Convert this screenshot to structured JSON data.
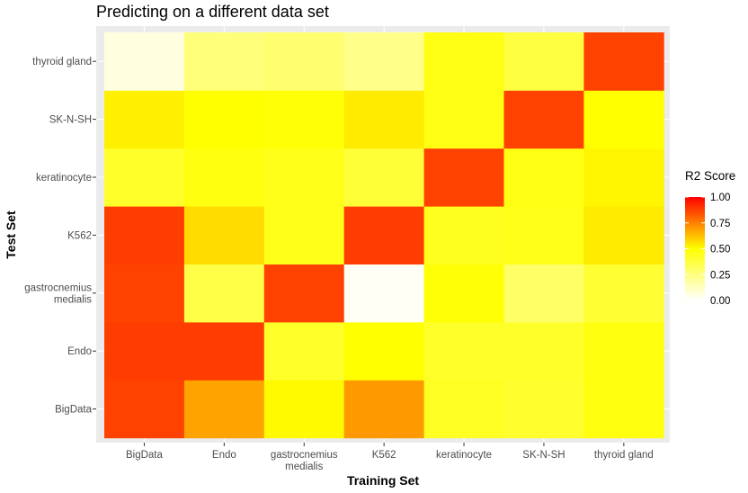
{
  "chart_data": {
    "type": "heatmap",
    "title": "Predicting on a different data set",
    "xlabel": "Training Set",
    "ylabel": "Test Set",
    "x_categories": [
      "BigData",
      "Endo",
      "gastrocnemius medialis",
      "K562",
      "keratinocyte",
      "SK-N-SH",
      "thyroid gland"
    ],
    "y_categories": [
      "BigData",
      "Endo",
      "gastrocnemius medialis",
      "K562",
      "keratinocyte",
      "SK-N-SH",
      "thyroid gland"
    ],
    "values": [
      [
        0.87,
        0.68,
        0.51,
        0.7,
        0.43,
        0.41,
        0.47
      ],
      [
        0.88,
        0.88,
        0.42,
        0.5,
        0.42,
        0.42,
        0.47
      ],
      [
        0.87,
        0.36,
        0.87,
        0.02,
        0.49,
        0.3,
        0.4
      ],
      [
        0.88,
        0.57,
        0.45,
        0.88,
        0.44,
        0.45,
        0.54
      ],
      [
        0.42,
        0.47,
        0.45,
        0.39,
        0.87,
        0.46,
        0.52
      ],
      [
        0.53,
        0.5,
        0.49,
        0.54,
        0.46,
        0.87,
        0.5
      ],
      [
        0.06,
        0.26,
        0.28,
        0.23,
        0.46,
        0.37,
        0.87
      ]
    ],
    "legend": {
      "title": "R2 Score",
      "ticks": [
        "1.00",
        "0.75",
        "0.50",
        "0.25",
        "0.00"
      ],
      "range": [
        0,
        1
      ],
      "position": "right"
    },
    "colors": {
      "low": "#ffffff",
      "mid": "#ffff00",
      "high": "#ff0000",
      "panel": "#ebebeb",
      "grid": "#ffffff"
    }
  }
}
